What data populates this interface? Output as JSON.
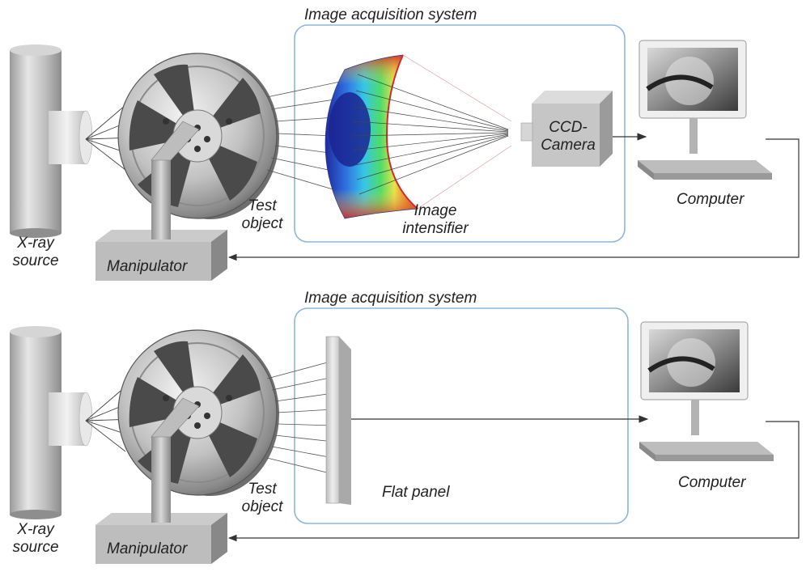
{
  "panels": [
    {
      "system_label": "Image acquisition system",
      "xray_label": "X-ray\nsource",
      "test_object_label": "Test\nobject",
      "manipulator_label": "Manipulator",
      "intensifier_label": "Image\nintensifier",
      "camera_label": "CCD-\nCamera",
      "computer_label": "Computer"
    },
    {
      "system_label": "Image acquisition system",
      "xray_label": "X-ray\nsource",
      "test_object_label": "Test\nobject",
      "manipulator_label": "Manipulator",
      "detector_label": "Flat panel",
      "computer_label": "Computer"
    }
  ],
  "colors": {
    "box_border": "#8fb5de",
    "device_gray": "#b9b9b9",
    "wire": "#333333",
    "intensifier_map": [
      "#1f2a9c",
      "#2f6fe0",
      "#36c6e6",
      "#4fdc6a",
      "#e9e24a",
      "#e8762c",
      "#d22a2a"
    ]
  }
}
